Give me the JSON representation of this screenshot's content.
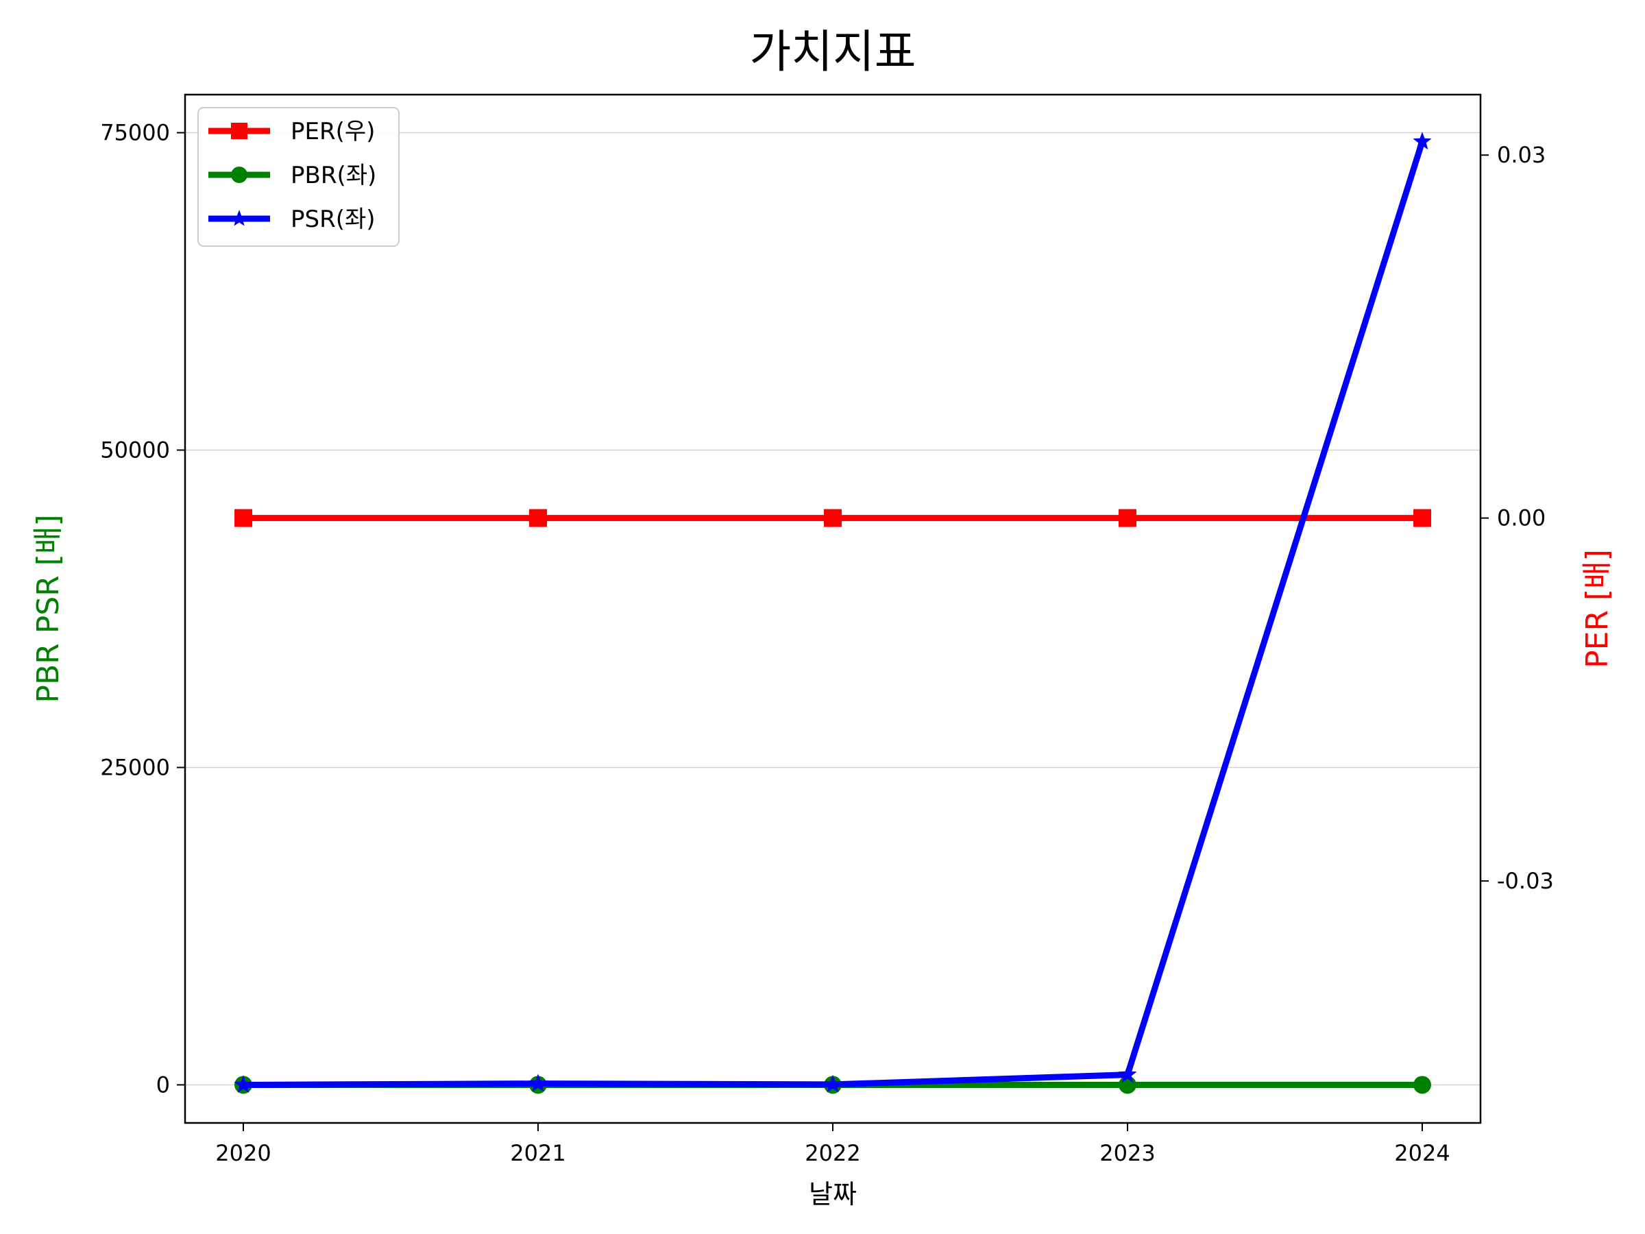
{
  "chart_data": {
    "type": "line",
    "title": "가치지표",
    "xlabel": "날짜",
    "ylabel_left": "PBR PSR [배]",
    "ylabel_right": "PER [배]",
    "x": [
      "2020",
      "2021",
      "2022",
      "2023",
      "2024"
    ],
    "y_left": {
      "range": [
        -3000,
        78000
      ],
      "ticks": [
        0,
        25000,
        50000,
        75000
      ],
      "tick_labels": [
        "0",
        "25000",
        "50000",
        "75000"
      ]
    },
    "y_right": {
      "range": [
        -0.05,
        0.035
      ],
      "ticks": [
        -0.03,
        0.0,
        0.03
      ],
      "tick_labels": [
        "-0.03",
        "0.00",
        "0.03"
      ]
    },
    "grid": "horizontal",
    "legend_position": "top-left",
    "series": [
      {
        "name": "PER(우)",
        "axis": "right",
        "color": "#ff0000",
        "marker": "square",
        "values": [
          0,
          0,
          0,
          0,
          0
        ]
      },
      {
        "name": "PBR(좌)",
        "axis": "left",
        "color": "#008000",
        "marker": "circle",
        "values": [
          0,
          0,
          0,
          0,
          0
        ]
      },
      {
        "name": "PSR(좌)",
        "axis": "left",
        "color": "#0000ff",
        "marker": "star",
        "values": [
          0,
          100,
          30,
          800,
          74300
        ]
      }
    ]
  }
}
